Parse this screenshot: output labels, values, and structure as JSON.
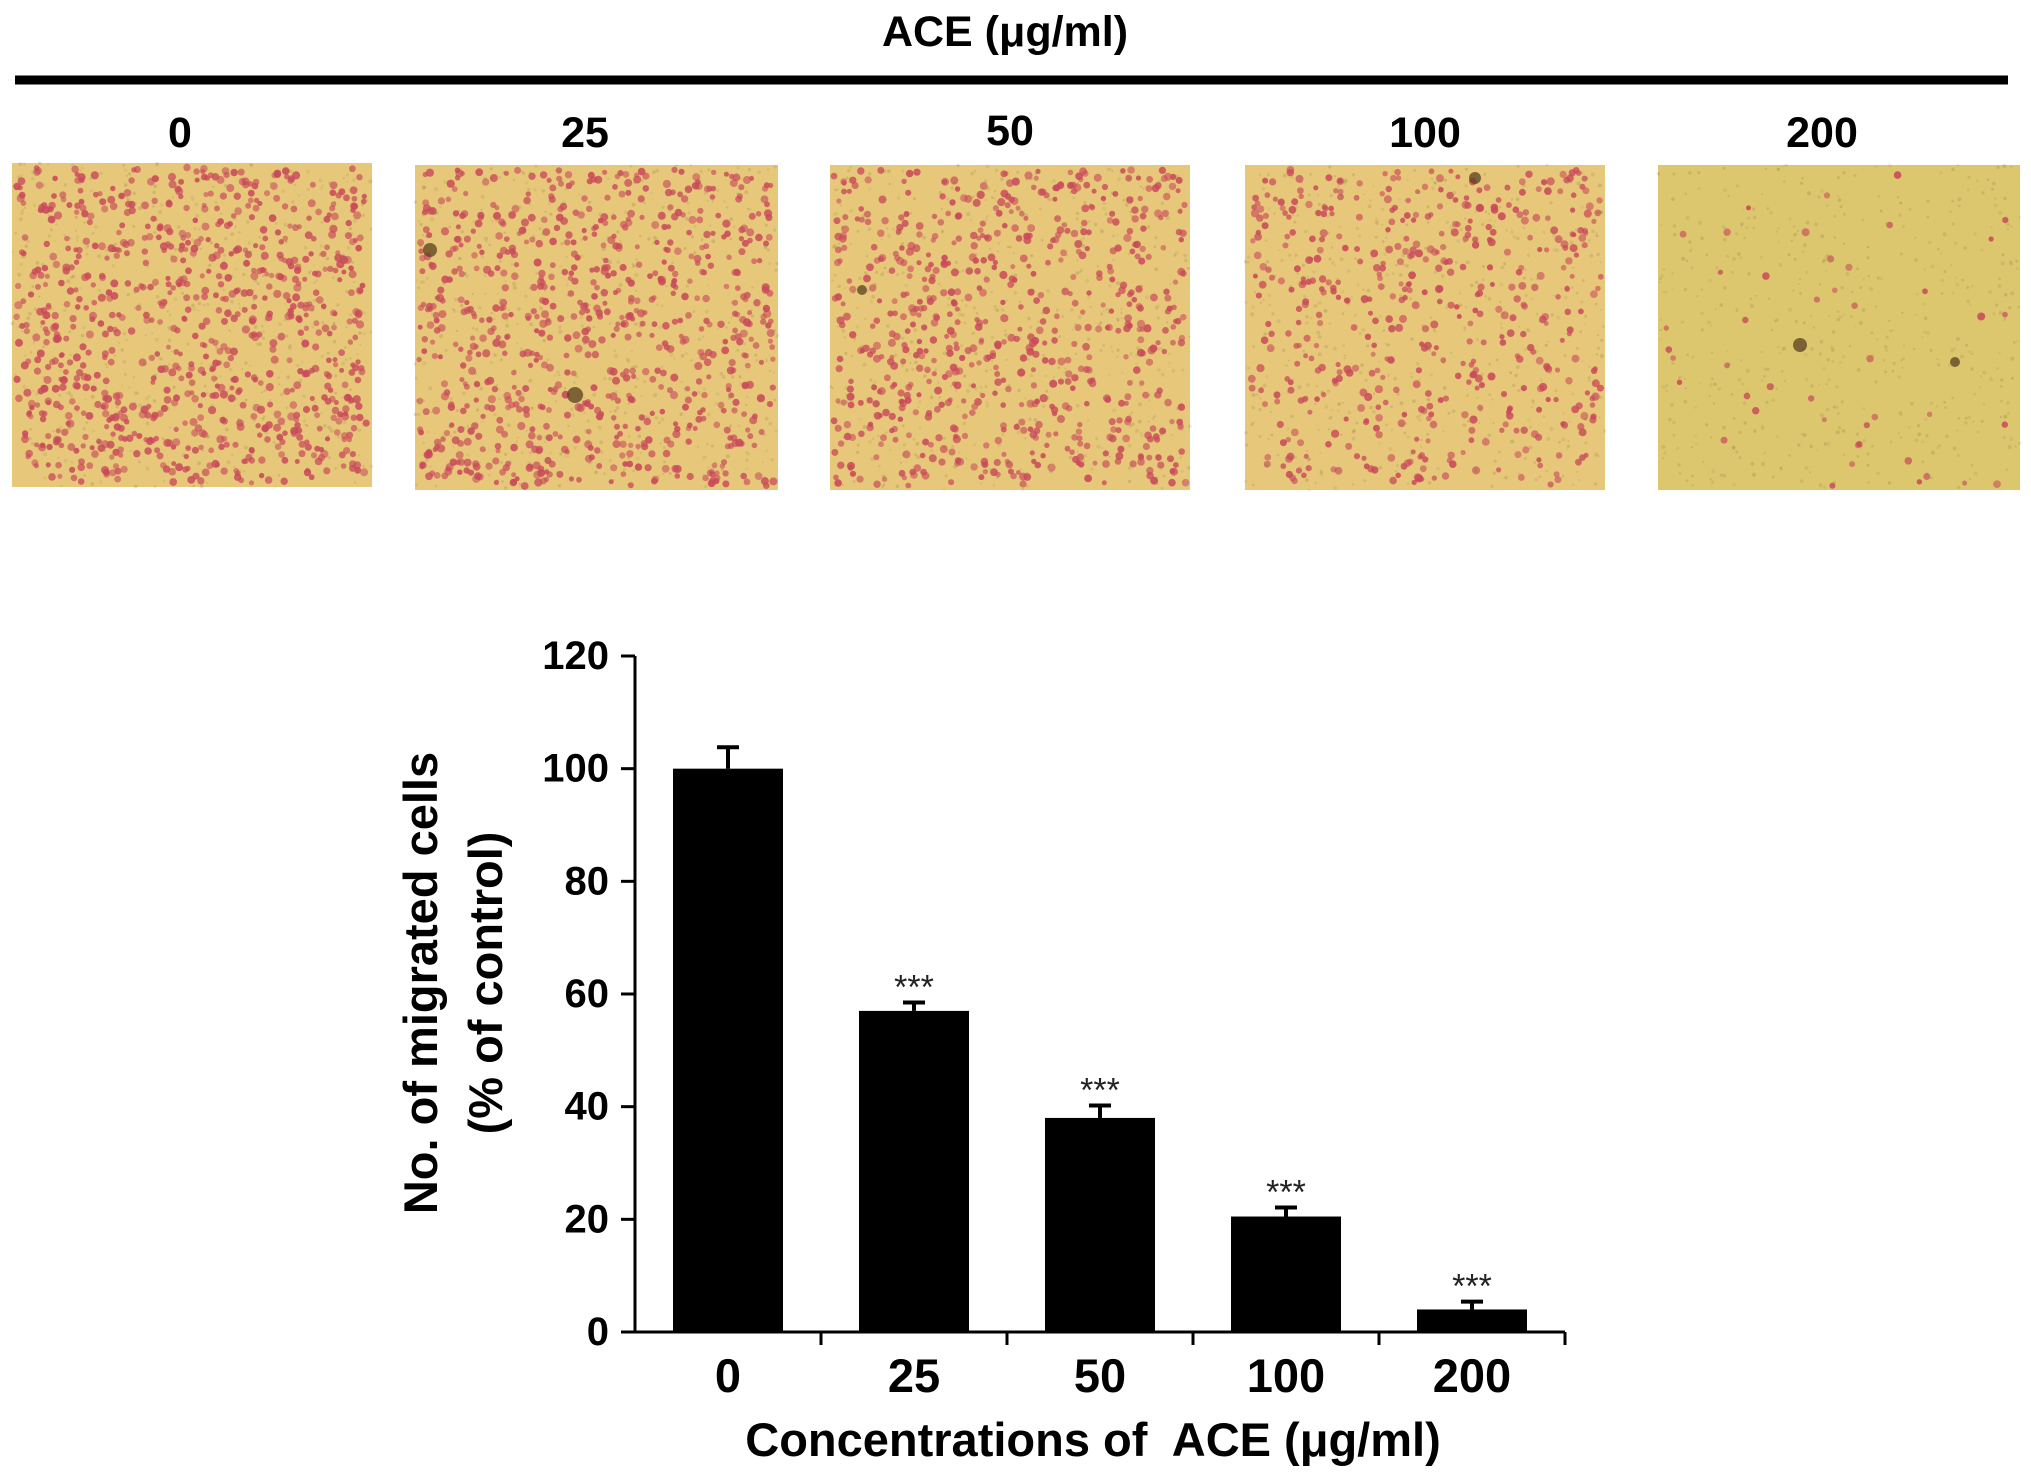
{
  "header": {
    "treatment_label": "ACE (μg/ml)",
    "panel_labels": [
      "0",
      "25",
      "50",
      "100",
      "200"
    ],
    "panel_stain_density": [
      0.95,
      0.85,
      0.75,
      0.55,
      0.05
    ]
  },
  "colors": {
    "bar": "#000000",
    "field_background": "#e7c87a",
    "cell_stain": "#c9495a",
    "field_background_200": "#dcc66e"
  },
  "chart_data": {
    "type": "bar",
    "categories": [
      "0",
      "25",
      "50",
      "100",
      "200"
    ],
    "values": [
      100,
      57,
      38,
      20.5,
      4
    ],
    "errors": [
      3.8,
      1.5,
      2.2,
      1.6,
      1.4
    ],
    "annotations": [
      "",
      "***",
      "***",
      "***",
      "***"
    ],
    "xlabel": "Concentrations of  ACE (μg/ml)",
    "ylabel_line1": "No. of migrated cells",
    "ylabel_line2": "(% of control)",
    "ylim": [
      0,
      120
    ],
    "yticks": [
      0,
      20,
      40,
      60,
      80,
      100,
      120
    ],
    "grid": false
  }
}
